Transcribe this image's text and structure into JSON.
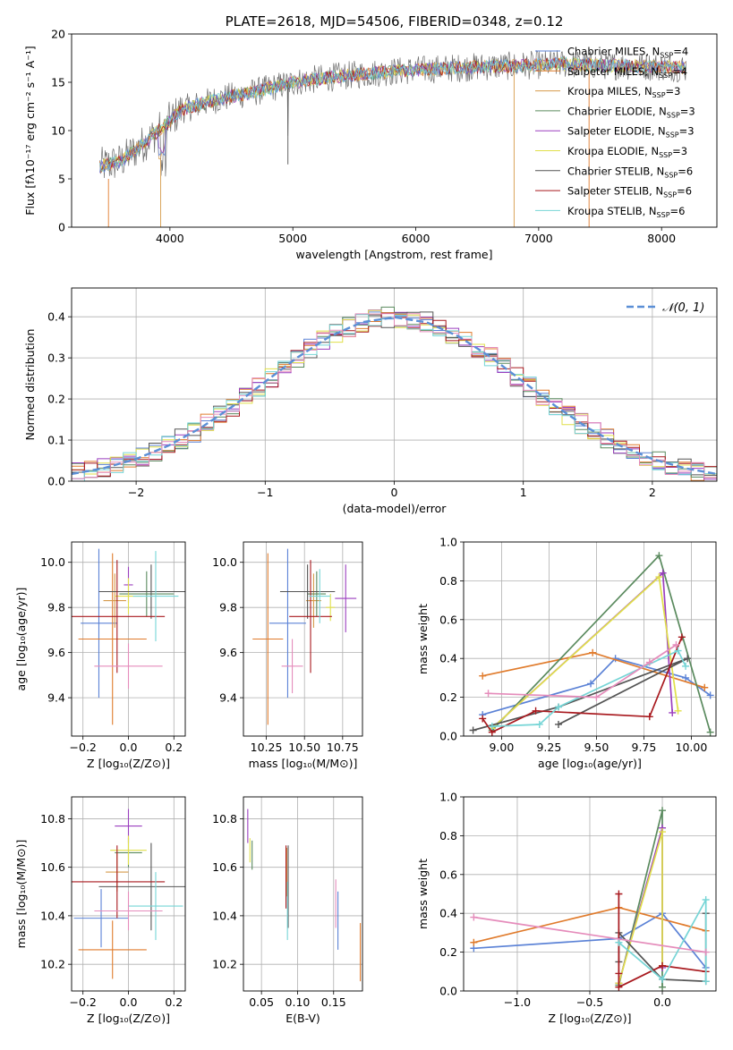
{
  "colors": {
    "chabrier_miles": "#5b82d6",
    "salpeter_miles": "#e07b2c",
    "kroupa_miles": "#d69a4a",
    "chabrier_elodie": "#5a8a5e",
    "salpeter_elodie": "#9b3fbf",
    "kroupa_elodie": "#e0df4a",
    "chabrier_stelib": "#555555",
    "salpeter_stelib": "#a8191e",
    "kroupa_stelib": "#76d5d6",
    "pink": "#e58cbb",
    "gauss": "#5b8fd6"
  },
  "chart_data": [
    {
      "id": "spectrum",
      "type": "line",
      "title": "PLATE=2618, MJD=54506, FIBERID=0348, z=0.12",
      "xlabel": "wavelength [Angstrom, rest frame]",
      "ylabel": "Flux [fλ10⁻¹⁷ erg cm⁻² s⁻¹ A⁻¹]",
      "xlim": [
        3200,
        8450
      ],
      "ylim": [
        0,
        20
      ],
      "xticks": [
        "4000",
        "5000",
        "6000",
        "7000",
        "8000"
      ],
      "yticks": [
        "0",
        "5",
        "10",
        "15",
        "20"
      ],
      "legend_position": "top-right",
      "series": [
        {
          "name": "Chabrier MILES, N_SSP=4",
          "color_key": "chabrier_miles"
        },
        {
          "name": "Salpeter MILES, N_SSP=4",
          "color_key": "salpeter_miles"
        },
        {
          "name": "Kroupa MILES, N_SSP=3",
          "color_key": "kroupa_miles"
        },
        {
          "name": "Chabrier ELODIE, N_SSP=3",
          "color_key": "chabrier_elodie"
        },
        {
          "name": "Salpeter ELODIE, N_SSP=3",
          "color_key": "salpeter_elodie"
        },
        {
          "name": "Kroupa ELODIE, N_SSP=3",
          "color_key": "kroupa_elodie"
        },
        {
          "name": "Chabrier STELIB, N_SSP=6",
          "color_key": "chabrier_stelib"
        },
        {
          "name": "Salpeter STELIB, N_SSP=6",
          "color_key": "salpeter_stelib"
        },
        {
          "name": "Kroupa STELIB, N_SSP=6",
          "color_key": "kroupa_stelib"
        }
      ],
      "continuum": {
        "x": [
          3430,
          3600,
          3800,
          3950,
          4100,
          4400,
          4700,
          5000,
          5300,
          5600,
          5900,
          6200,
          6500,
          6800,
          7000,
          7200,
          7400,
          7700,
          8000,
          8200
        ],
        "y": [
          6.3,
          6.8,
          8.8,
          10.5,
          12.2,
          13.3,
          14.0,
          15.0,
          15.5,
          15.9,
          16.2,
          16.4,
          16.6,
          16.7,
          16.8,
          16.9,
          16.8,
          16.7,
          16.6,
          16.5
        ]
      }
    },
    {
      "id": "residuals",
      "type": "line",
      "title": "",
      "xlabel": "(data-model)/error",
      "ylabel": "Normed distribution",
      "xlim": [
        -2.5,
        2.5
      ],
      "ylim": [
        0,
        0.47
      ],
      "xticks": [
        "−2",
        "−1",
        "0",
        "1",
        "2"
      ],
      "yticks": [
        "0.0",
        "0.1",
        "0.2",
        "0.3",
        "0.4"
      ],
      "grid": true,
      "legend_position": "top-right",
      "legend": "𝒩(0, 1)",
      "gauss_x": [
        -2.5,
        -2.25,
        -2.0,
        -1.75,
        -1.5,
        -1.25,
        -1.0,
        -0.75,
        -0.5,
        -0.25,
        0.0,
        0.25,
        0.5,
        0.75,
        1.0,
        1.25,
        1.5,
        1.75,
        2.0,
        2.25,
        2.5
      ],
      "gauss_y": [
        0.0175,
        0.0317,
        0.054,
        0.0863,
        0.1295,
        0.1826,
        0.242,
        0.3011,
        0.3521,
        0.3867,
        0.3989,
        0.3867,
        0.3521,
        0.3011,
        0.242,
        0.1826,
        0.1295,
        0.0863,
        0.054,
        0.0317,
        0.0175
      ]
    },
    {
      "id": "age-vs-z",
      "type": "scatter",
      "xlabel": "Z [log₁₀(Z/Z⊙)]",
      "ylabel": "age  [log₁₀(age/yr)]",
      "xlim": [
        -0.25,
        0.25
      ],
      "ylim": [
        9.23,
        10.09
      ],
      "xticks": [
        "−0.2",
        "0.0",
        "0.2"
      ],
      "yticks": [
        "9.4",
        "9.6",
        "9.8",
        "10.0"
      ],
      "grid": true,
      "points": [
        {
          "color_key": "chabrier_miles",
          "x": -0.13,
          "xerr": 0.08,
          "y": 9.73,
          "yerr": 0.33
        },
        {
          "color_key": "salpeter_miles",
          "x": -0.07,
          "xerr": 0.15,
          "y": 9.66,
          "yerr": 0.38
        },
        {
          "color_key": "kroupa_miles",
          "x": -0.06,
          "xerr": 0.05,
          "y": 9.83,
          "yerr": 0.12
        },
        {
          "color_key": "chabrier_elodie",
          "x": 0.08,
          "xerr": 0.12,
          "y": 9.86,
          "yerr": 0.1
        },
        {
          "color_key": "salpeter_elodie",
          "x": 0.0,
          "xerr": 0.02,
          "y": 9.9,
          "yerr": 0.08
        },
        {
          "color_key": "kroupa_elodie",
          "x": 0.0,
          "xerr": 0.06,
          "y": 9.85,
          "yerr": 0.08
        },
        {
          "color_key": "chabrier_stelib",
          "x": 0.1,
          "xerr": 0.23,
          "y": 9.87,
          "yerr": 0.12
        },
        {
          "color_key": "salpeter_stelib",
          "x": -0.05,
          "xerr": 0.21,
          "y": 9.76,
          "yerr": 0.25
        },
        {
          "color_key": "kroupa_stelib",
          "x": 0.12,
          "xerr": 0.1,
          "y": 9.85,
          "yerr": 0.2
        },
        {
          "color_key": "pink",
          "x": 0.0,
          "xerr": 0.15,
          "y": 9.54,
          "yerr": 0.1
        }
      ]
    },
    {
      "id": "age-vs-mass",
      "type": "scatter",
      "xlabel": "mass [log₁₀(M/M⊙)]",
      "ylabel": "",
      "xlim": [
        10.1,
        10.88
      ],
      "ylim": [
        9.23,
        10.09
      ],
      "xticks": [
        "10.25",
        "10.50",
        "10.75"
      ],
      "yticks": [
        "9.4",
        "9.6",
        "9.8",
        "10.0"
      ],
      "grid": true,
      "points": [
        {
          "color_key": "chabrier_miles",
          "x": 10.39,
          "xerr": 0.12,
          "y": 9.73,
          "yerr": 0.33
        },
        {
          "color_key": "salpeter_miles",
          "x": 10.26,
          "xerr": 0.1,
          "y": 9.66,
          "yerr": 0.38
        },
        {
          "color_key": "kroupa_miles",
          "x": 10.56,
          "xerr": 0.05,
          "y": 9.83,
          "yerr": 0.12
        },
        {
          "color_key": "chabrier_elodie",
          "x": 10.58,
          "xerr": 0.06,
          "y": 9.86,
          "yerr": 0.1
        },
        {
          "color_key": "salpeter_elodie",
          "x": 10.77,
          "xerr": 0.07,
          "y": 9.84,
          "yerr": 0.15
        },
        {
          "color_key": "kroupa_elodie",
          "x": 10.67,
          "xerr": 0.03,
          "y": 9.8,
          "yerr": 0.06
        },
        {
          "color_key": "chabrier_stelib",
          "x": 10.52,
          "xerr": 0.18,
          "y": 9.87,
          "yerr": 0.12
        },
        {
          "color_key": "salpeter_stelib",
          "x": 10.54,
          "xerr": 0.14,
          "y": 9.76,
          "yerr": 0.25
        },
        {
          "color_key": "kroupa_stelib",
          "x": 10.6,
          "xerr": 0.07,
          "y": 9.85,
          "yerr": 0.12
        },
        {
          "color_key": "pink",
          "x": 10.42,
          "xerr": 0.07,
          "y": 9.54,
          "yerr": 0.12
        }
      ]
    },
    {
      "id": "weight-vs-age",
      "type": "line",
      "xlabel": "age  [log₁₀(age/yr)]",
      "ylabel": "mass weight",
      "xlim": [
        8.8,
        10.13
      ],
      "ylim": [
        0,
        1
      ],
      "xticks": [
        "9.00",
        "9.25",
        "9.50",
        "9.75",
        "10.00"
      ],
      "yticks": [
        "0.0",
        "0.2",
        "0.4",
        "0.6",
        "0.8",
        "1.0"
      ],
      "grid": true,
      "series": [
        {
          "color_key": "chabrier_miles",
          "x": [
            8.9,
            9.47,
            9.6,
            9.97,
            10.1
          ],
          "y": [
            0.11,
            0.27,
            0.4,
            0.3,
            0.21
          ]
        },
        {
          "color_key": "salpeter_miles",
          "x": [
            8.9,
            9.48,
            10.07
          ],
          "y": [
            0.31,
            0.43,
            0.25
          ]
        },
        {
          "color_key": "chabrier_elodie",
          "x": [
            8.95,
            9.83,
            10.1
          ],
          "y": [
            0.03,
            0.93,
            0.02
          ]
        },
        {
          "color_key": "salpeter_elodie",
          "x": [
            8.95,
            9.85,
            9.9
          ],
          "y": [
            0.04,
            0.84,
            0.12
          ]
        },
        {
          "color_key": "kroupa_elodie",
          "x": [
            8.95,
            9.83,
            9.93
          ],
          "y": [
            0.04,
            0.82,
            0.13
          ]
        },
        {
          "color_key": "chabrier_stelib",
          "x": [
            8.85,
            9.3,
            9.98,
            9.3
          ],
          "y": [
            0.03,
            0.15,
            0.4,
            0.06
          ]
        },
        {
          "color_key": "salpeter_stelib",
          "x": [
            8.9,
            8.95,
            9.18,
            9.78,
            9.95
          ],
          "y": [
            0.09,
            0.02,
            0.13,
            0.1,
            0.51
          ]
        },
        {
          "color_key": "kroupa_stelib",
          "x": [
            8.95,
            9.2,
            9.3,
            9.93,
            9.97
          ],
          "y": [
            0.05,
            0.06,
            0.15,
            0.44,
            0.36
          ]
        },
        {
          "color_key": "pink",
          "x": [
            8.93,
            9.5,
            9.78,
            9.92
          ],
          "y": [
            0.22,
            0.2,
            0.38,
            0.47
          ]
        }
      ]
    },
    {
      "id": "mass-vs-z",
      "type": "scatter",
      "xlabel": "Z [log₁₀(Z/Z⊙)]",
      "ylabel": "mass [log₁₀(M/M⊙)]",
      "xlim": [
        -0.25,
        0.25
      ],
      "ylim": [
        10.09,
        10.89
      ],
      "xticks": [
        "−0.2",
        "0.0",
        "0.2"
      ],
      "yticks": [
        "10.2",
        "10.4",
        "10.6",
        "10.8"
      ],
      "grid": true,
      "points": [
        {
          "color_key": "chabrier_miles",
          "x": -0.12,
          "xerr": 0.12,
          "y": 10.39,
          "yerr": 0.12
        },
        {
          "color_key": "salpeter_miles",
          "x": -0.07,
          "xerr": 0.15,
          "y": 10.26,
          "yerr": 0.12
        },
        {
          "color_key": "kroupa_miles",
          "x": -0.05,
          "xerr": 0.05,
          "y": 10.58,
          "yerr": 0.08
        },
        {
          "color_key": "chabrier_elodie",
          "x": 0.0,
          "xerr": 0.06,
          "y": 10.66,
          "yerr": 0.06
        },
        {
          "color_key": "salpeter_elodie",
          "x": 0.0,
          "xerr": 0.06,
          "y": 10.77,
          "yerr": 0.07
        },
        {
          "color_key": "kroupa_elodie",
          "x": 0.0,
          "xerr": 0.08,
          "y": 10.67,
          "yerr": 0.06
        },
        {
          "color_key": "chabrier_stelib",
          "x": 0.1,
          "xerr": 0.23,
          "y": 10.52,
          "yerr": 0.18
        },
        {
          "color_key": "salpeter_stelib",
          "x": -0.05,
          "xerr": 0.21,
          "y": 10.54,
          "yerr": 0.15
        },
        {
          "color_key": "kroupa_stelib",
          "x": 0.12,
          "xerr": 0.12,
          "y": 10.44,
          "yerr": 0.14
        },
        {
          "color_key": "pink",
          "x": 0.0,
          "xerr": 0.15,
          "y": 10.42,
          "yerr": 0.08
        }
      ]
    },
    {
      "id": "mass-vs-ebv",
      "type": "scatter",
      "xlabel": "E(B-V)",
      "ylabel": "",
      "xlim": [
        0.025,
        0.19
      ],
      "ylim": [
        10.09,
        10.89
      ],
      "xticks": [
        "0.05",
        "0.10",
        "0.15"
      ],
      "yticks": [
        "10.2",
        "10.4",
        "10.6",
        "10.8"
      ],
      "grid": true,
      "points": [
        {
          "color_key": "chabrier_miles",
          "x": 0.156,
          "xerr": 0,
          "y": 10.38,
          "yerr": 0.12
        },
        {
          "color_key": "salpeter_miles",
          "x": 0.187,
          "xerr": 0,
          "y": 10.25,
          "yerr": 0.12
        },
        {
          "color_key": "kroupa_miles",
          "x": 0.085,
          "xerr": 0,
          "y": 10.58,
          "yerr": 0.1
        },
        {
          "color_key": "chabrier_elodie",
          "x": 0.037,
          "xerr": 0,
          "y": 10.65,
          "yerr": 0.06
        },
        {
          "color_key": "salpeter_elodie",
          "x": 0.031,
          "xerr": 0,
          "y": 10.77,
          "yerr": 0.07
        },
        {
          "color_key": "kroupa_elodie",
          "x": 0.034,
          "xerr": 0,
          "y": 10.67,
          "yerr": 0.05
        },
        {
          "color_key": "chabrier_stelib",
          "x": 0.087,
          "xerr": 0,
          "y": 10.52,
          "yerr": 0.17
        },
        {
          "color_key": "salpeter_stelib",
          "x": 0.084,
          "xerr": 0,
          "y": 10.56,
          "yerr": 0.13
        },
        {
          "color_key": "kroupa_stelib",
          "x": 0.086,
          "xerr": 0,
          "y": 10.42,
          "yerr": 0.12
        },
        {
          "color_key": "pink",
          "x": 0.153,
          "xerr": 0,
          "y": 10.45,
          "yerr": 0.1
        }
      ]
    },
    {
      "id": "weight-vs-z",
      "type": "line",
      "xlabel": "Z [log₁₀(Z/Z⊙)]",
      "ylabel": "mass weight",
      "xlim": [
        -1.37,
        0.37
      ],
      "ylim": [
        0,
        1
      ],
      "xticks": [
        "−1.0",
        "−0.5",
        "0.0"
      ],
      "yticks": [
        "0.0",
        "0.2",
        "0.4",
        "0.6",
        "0.8",
        "1.0"
      ],
      "grid": true,
      "series": [
        {
          "color_key": "chabrier_miles",
          "x": [
            -1.3,
            -0.3,
            0.0,
            0.3
          ],
          "y": [
            0.22,
            0.27,
            0.4,
            0.12
          ]
        },
        {
          "color_key": "salpeter_miles",
          "x": [
            -1.3,
            -0.3,
            0.3
          ],
          "y": [
            0.25,
            0.43,
            0.31
          ]
        },
        {
          "color_key": "chabrier_elodie",
          "x": [
            -0.3,
            0.0,
            0.0
          ],
          "y": [
            0.03,
            0.93,
            0.02
          ]
        },
        {
          "color_key": "salpeter_elodie",
          "x": [
            -0.3,
            0.0,
            0.0
          ],
          "y": [
            0.04,
            0.84,
            0.12
          ]
        },
        {
          "color_key": "kroupa_elodie",
          "x": [
            -0.3,
            0.0,
            0.0
          ],
          "y": [
            0.04,
            0.82,
            0.13
          ]
        },
        {
          "color_key": "chabrier_stelib",
          "x": [
            -0.3,
            -0.3,
            0.0,
            0.3,
            0.3
          ],
          "y": [
            0.15,
            0.3,
            0.06,
            0.05,
            0.4
          ]
        },
        {
          "color_key": "salpeter_stelib",
          "x": [
            -0.3,
            -0.3,
            -0.3,
            0.0,
            0.3
          ],
          "y": [
            0.5,
            0.09,
            0.02,
            0.13,
            0.1
          ]
        },
        {
          "color_key": "kroupa_stelib",
          "x": [
            -0.3,
            0.0,
            0.3,
            0.3
          ],
          "y": [
            0.25,
            0.06,
            0.47,
            0.05
          ]
        },
        {
          "color_key": "pink",
          "x": [
            -1.3,
            0.3
          ],
          "y": [
            0.38,
            0.2
          ]
        }
      ]
    }
  ]
}
